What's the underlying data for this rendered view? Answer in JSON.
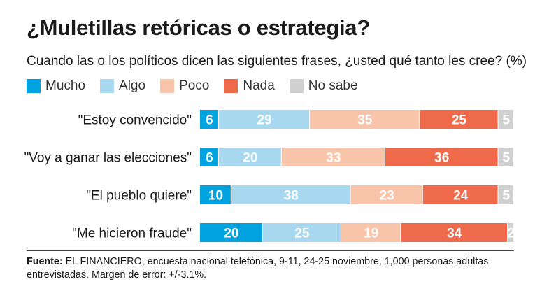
{
  "header": {
    "title": "¿Muletillas retóricas o estrategia?",
    "subtitle": "Cuando las o los políticos dicen las siguientes frases, ¿usted qué tanto les cree? (%)"
  },
  "legend": [
    {
      "label": "Mucho",
      "color": "#00a3e0"
    },
    {
      "label": "Algo",
      "color": "#a8d8f0"
    },
    {
      "label": "Poco",
      "color": "#f8c4aa"
    },
    {
      "label": "Nada",
      "color": "#ee6a4a"
    },
    {
      "label": "No sabe",
      "color": "#d0d0d0"
    }
  ],
  "chart_data": {
    "type": "bar",
    "orientation": "horizontal",
    "stacked": true,
    "title": "¿Muletillas retóricas o estrategia?",
    "subtitle": "Cuando las o los políticos dicen las siguientes frases, ¿usted qué tanto les cree? (%)",
    "categories": [
      "\"Estoy convencido\"",
      "\"Voy a ganar las elecciones\"",
      "\"El pueblo quiere\"",
      "\"Me hicieron fraude\""
    ],
    "series": [
      {
        "name": "Mucho",
        "color": "#00a3e0",
        "label_color": "#ffffff",
        "values": [
          6,
          6,
          10,
          20
        ]
      },
      {
        "name": "Algo",
        "color": "#a8d8f0",
        "label_color": "#ffffff",
        "values": [
          29,
          20,
          38,
          25
        ]
      },
      {
        "name": "Poco",
        "color": "#f8c4aa",
        "label_color": "#ffffff",
        "values": [
          35,
          33,
          23,
          19
        ]
      },
      {
        "name": "Nada",
        "color": "#ee6a4a",
        "label_color": "#ffffff",
        "values": [
          25,
          36,
          24,
          34
        ]
      },
      {
        "name": "No sabe",
        "color": "#d0d0d0",
        "label_color": "#ffffff",
        "values": [
          5,
          5,
          5,
          2
        ]
      }
    ],
    "legend_position": "top-left",
    "grid": false
  },
  "footer": {
    "source_label": "Fuente:",
    "source_text": "EL FINANCIERO, encuesta nacional telefónica, 9-11, 24-25 noviembre, 1,000 personas adultas entrevistadas. Margen de error: +/-3.1%."
  }
}
